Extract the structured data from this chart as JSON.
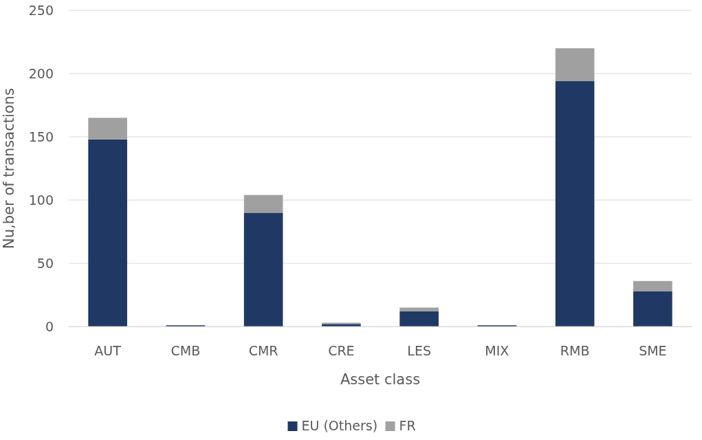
{
  "chart_data": {
    "type": "bar",
    "xlabel": "Asset class",
    "ylabel": "Nu,ber of transactions",
    "categories": [
      "AUT",
      "CMB",
      "CMR",
      "CRE",
      "LES",
      "MIX",
      "RMB",
      "SME"
    ],
    "series": [
      {
        "name": "EU (Others)",
        "color": "#203864",
        "values": [
          148,
          1,
          90,
          2,
          12,
          1,
          194,
          28
        ]
      },
      {
        "name": "FR",
        "color": "#a0a0a0",
        "values": [
          17,
          0,
          14,
          1,
          3,
          0,
          26,
          8
        ]
      }
    ],
    "stacked": true,
    "ylim": [
      0,
      250
    ],
    "yticks": [
      0,
      50,
      100,
      150,
      200,
      250
    ],
    "grid": "y",
    "legend": "bottom"
  }
}
